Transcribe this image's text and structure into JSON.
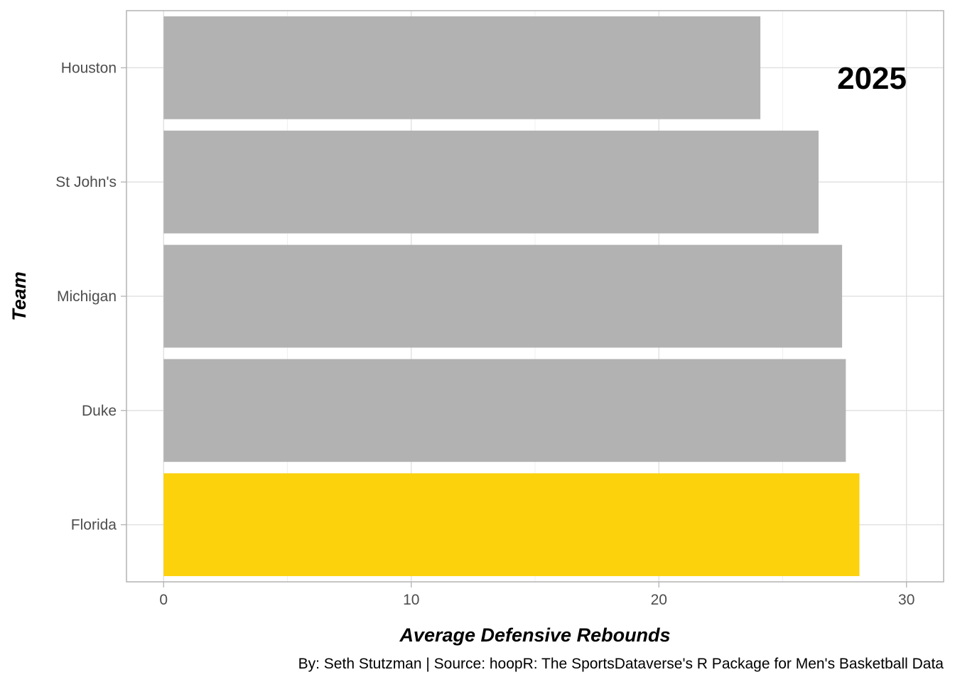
{
  "chart_data": {
    "type": "bar",
    "orientation": "horizontal",
    "categories": [
      "Houston",
      "St John's",
      "Michigan",
      "Duke",
      "Florida"
    ],
    "values": [
      24.1,
      26.45,
      27.4,
      27.55,
      28.1
    ],
    "highlight": "Florida",
    "colors": {
      "default": "#b2b2b2",
      "highlight": "#fcd20c"
    },
    "xlabel": "Average Defensive Rebounds",
    "ylabel": "Team",
    "xlim": [
      -1.5,
      31.5
    ],
    "xticks": [
      0,
      10,
      20,
      30
    ],
    "grid": true,
    "annotation": "2025",
    "caption": "By: Seth Stutzman | Source: hoopR: The SportsDataverse's R Package for Men's Basketball Data"
  }
}
